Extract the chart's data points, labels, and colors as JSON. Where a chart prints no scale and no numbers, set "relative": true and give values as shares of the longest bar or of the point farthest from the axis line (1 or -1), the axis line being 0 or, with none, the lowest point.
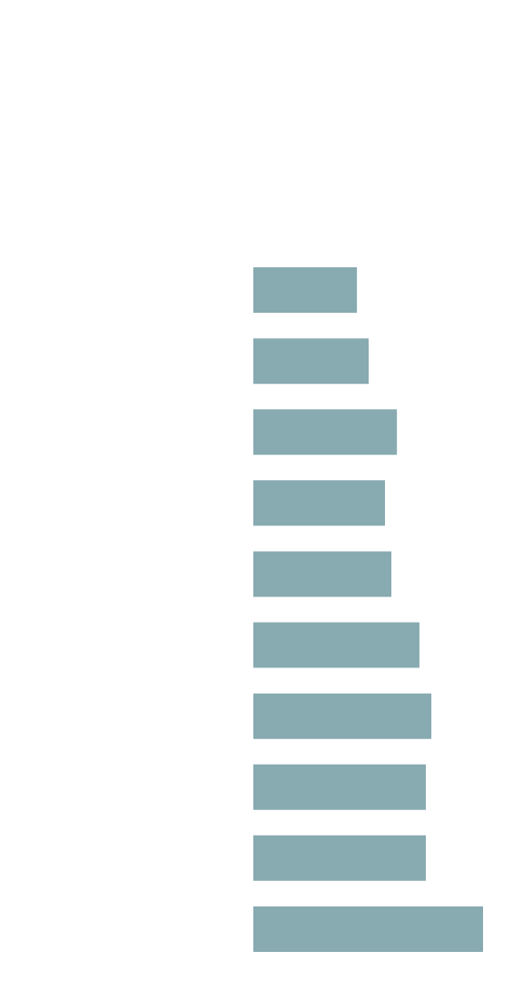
{
  "chart_data": {
    "type": "bar",
    "orientation": "horizontal",
    "relative": true,
    "categories": [
      null,
      null,
      null,
      null,
      null,
      null,
      null,
      null,
      null,
      null
    ],
    "values": [
      0.451,
      0.502,
      0.625,
      0.573,
      0.601,
      0.723,
      0.775,
      0.751,
      0.751,
      1
    ],
    "color": "#88aab1"
  }
}
